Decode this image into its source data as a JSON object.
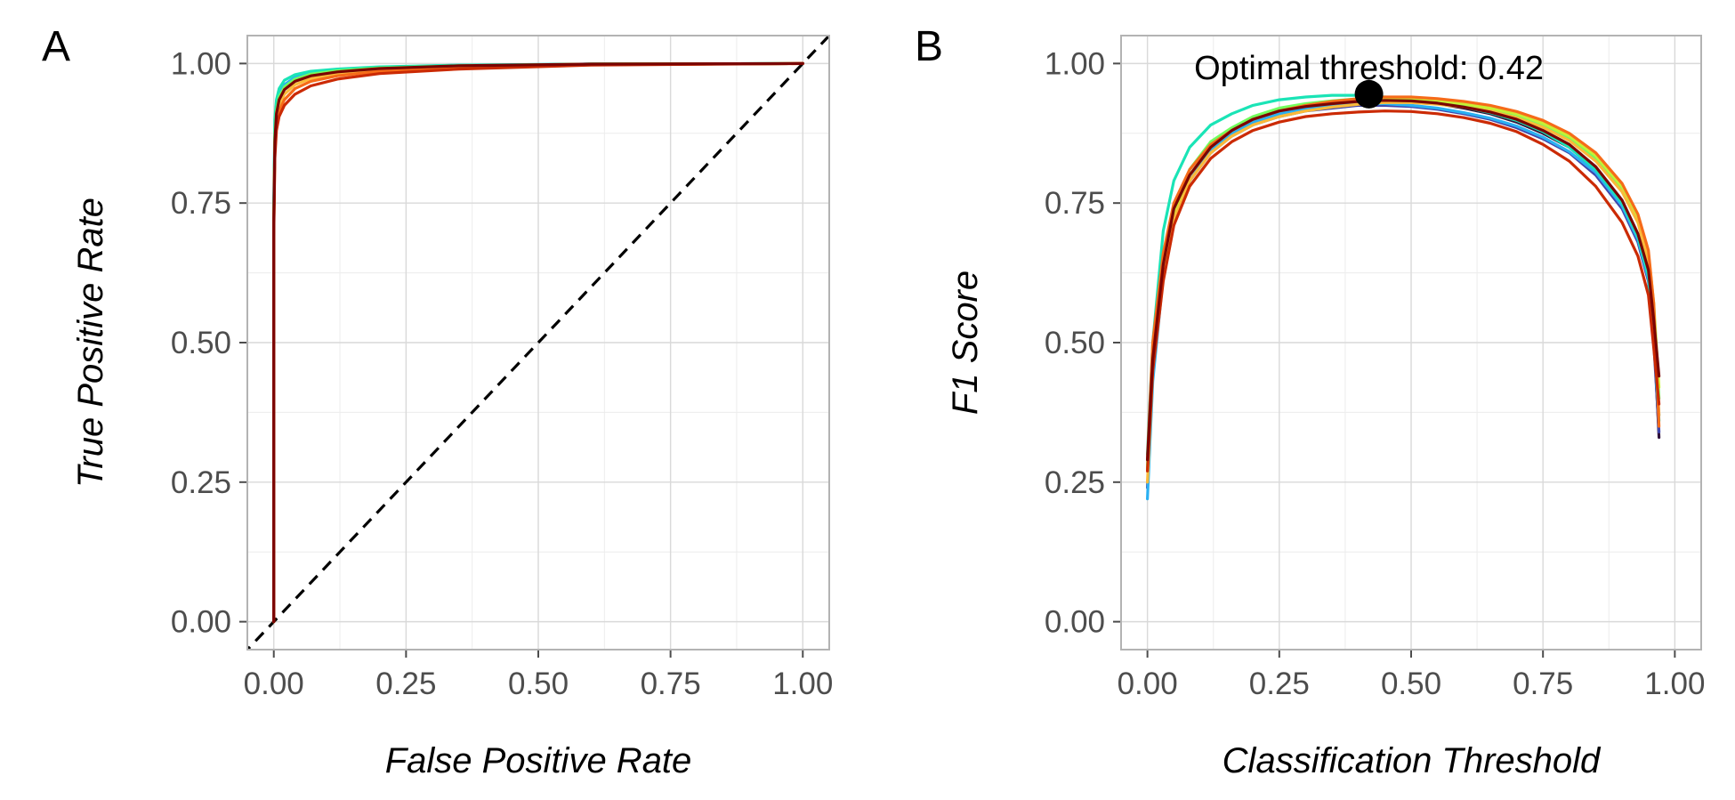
{
  "panels": {
    "a": {
      "letter": "A"
    },
    "b": {
      "letter": "B"
    }
  },
  "chart_data": [
    {
      "type": "line",
      "panel": "A",
      "xlabel": "False Positive Rate",
      "ylabel": "True Positive Rate",
      "xlim": [
        -0.05,
        1.05
      ],
      "ylim": [
        -0.05,
        1.05
      ],
      "xticks": [
        "0.00",
        "0.25",
        "0.50",
        "0.75",
        "1.00"
      ],
      "yticks": [
        "0.00",
        "0.25",
        "0.50",
        "0.75",
        "1.00"
      ],
      "grid": true,
      "reference_line": {
        "x": [
          0,
          1
        ],
        "y": [
          0,
          1
        ],
        "style": "dashed",
        "color": "#000000"
      },
      "series": [
        {
          "color": "#30123b",
          "x": [
            0,
            0,
            0.002,
            0.005,
            0.01,
            0.02,
            0.04,
            0.07,
            0.12,
            0.2,
            0.35,
            0.6,
            1.0
          ],
          "y": [
            0,
            0.72,
            0.86,
            0.91,
            0.935,
            0.953,
            0.968,
            0.978,
            0.985,
            0.991,
            0.996,
            0.999,
            1.0
          ]
        },
        {
          "color": "#4145ab",
          "x": [
            0,
            0,
            0.002,
            0.005,
            0.01,
            0.02,
            0.04,
            0.07,
            0.12,
            0.2,
            0.35,
            0.6,
            1.0
          ],
          "y": [
            0,
            0.72,
            0.87,
            0.915,
            0.94,
            0.957,
            0.971,
            0.98,
            0.987,
            0.992,
            0.996,
            0.999,
            1.0
          ]
        },
        {
          "color": "#2ab0f2",
          "x": [
            0,
            0,
            0.002,
            0.005,
            0.01,
            0.02,
            0.04,
            0.07,
            0.12,
            0.2,
            0.35,
            0.6,
            1.0
          ],
          "y": [
            0,
            0.73,
            0.88,
            0.92,
            0.945,
            0.962,
            0.975,
            0.983,
            0.989,
            0.993,
            0.997,
            0.999,
            1.0
          ]
        },
        {
          "color": "#1ae4b6",
          "x": [
            0,
            0,
            0.002,
            0.005,
            0.01,
            0.02,
            0.04,
            0.07,
            0.12,
            0.2,
            0.35,
            0.6,
            1.0
          ],
          "y": [
            0,
            0.75,
            0.9,
            0.935,
            0.955,
            0.97,
            0.98,
            0.986,
            0.99,
            0.994,
            0.997,
            0.999,
            1.0
          ]
        },
        {
          "color": "#72fe5e",
          "x": [
            0,
            0,
            0.002,
            0.005,
            0.01,
            0.02,
            0.04,
            0.07,
            0.12,
            0.2,
            0.35,
            0.6,
            1.0
          ],
          "y": [
            0,
            0.72,
            0.87,
            0.915,
            0.94,
            0.958,
            0.972,
            0.981,
            0.987,
            0.992,
            0.996,
            0.999,
            1.0
          ]
        },
        {
          "color": "#c8ef34",
          "x": [
            0,
            0,
            0.002,
            0.005,
            0.01,
            0.02,
            0.04,
            0.07,
            0.12,
            0.2,
            0.35,
            0.6,
            1.0
          ],
          "y": [
            0,
            0.71,
            0.86,
            0.91,
            0.935,
            0.953,
            0.968,
            0.978,
            0.985,
            0.991,
            0.995,
            0.999,
            1.0
          ]
        },
        {
          "color": "#faba39",
          "x": [
            0,
            0,
            0.002,
            0.005,
            0.01,
            0.02,
            0.04,
            0.07,
            0.12,
            0.2,
            0.35,
            0.6,
            1.0
          ],
          "y": [
            0,
            0.7,
            0.85,
            0.9,
            0.925,
            0.945,
            0.962,
            0.973,
            0.982,
            0.989,
            0.994,
            0.998,
            1.0
          ]
        },
        {
          "color": "#f66b19",
          "x": [
            0,
            0,
            0.002,
            0.005,
            0.01,
            0.02,
            0.04,
            0.07,
            0.12,
            0.2,
            0.35,
            0.6,
            1.0
          ],
          "y": [
            0,
            0.7,
            0.84,
            0.89,
            0.915,
            0.935,
            0.955,
            0.968,
            0.978,
            0.986,
            0.993,
            0.998,
            1.0
          ]
        },
        {
          "color": "#cb2a04",
          "x": [
            0,
            0,
            0.002,
            0.005,
            0.01,
            0.02,
            0.04,
            0.07,
            0.12,
            0.2,
            0.35,
            0.6,
            1.0
          ],
          "y": [
            0,
            0.69,
            0.83,
            0.88,
            0.905,
            0.925,
            0.945,
            0.96,
            0.972,
            0.982,
            0.99,
            0.997,
            1.0
          ]
        },
        {
          "color": "#7a0403",
          "x": [
            0,
            0,
            0.002,
            0.005,
            0.01,
            0.02,
            0.04,
            0.07,
            0.12,
            0.2,
            0.35,
            0.6,
            1.0
          ],
          "y": [
            0,
            0.72,
            0.86,
            0.91,
            0.935,
            0.953,
            0.968,
            0.978,
            0.985,
            0.991,
            0.996,
            0.999,
            1.0
          ]
        }
      ]
    },
    {
      "type": "line",
      "panel": "B",
      "xlabel": "Classification Threshold",
      "ylabel": "F1 Score",
      "xlim": [
        -0.05,
        1.05
      ],
      "ylim": [
        -0.05,
        1.05
      ],
      "xticks": [
        "0.00",
        "0.25",
        "0.50",
        "0.75",
        "1.00"
      ],
      "yticks": [
        "0.00",
        "0.25",
        "0.50",
        "0.75",
        "1.00"
      ],
      "grid": true,
      "annotation": {
        "text": "Optimal threshold: 0.42",
        "x": 0.42,
        "y": 0.945
      },
      "series": [
        {
          "color": "#30123b",
          "x": [
            0.0,
            0.01,
            0.03,
            0.05,
            0.08,
            0.12,
            0.16,
            0.2,
            0.25,
            0.3,
            0.35,
            0.4,
            0.45,
            0.5,
            0.55,
            0.6,
            0.65,
            0.7,
            0.75,
            0.8,
            0.85,
            0.9,
            0.93,
            0.95,
            0.96,
            0.97
          ],
          "y": [
            0.27,
            0.45,
            0.63,
            0.73,
            0.8,
            0.85,
            0.88,
            0.9,
            0.915,
            0.925,
            0.93,
            0.935,
            0.935,
            0.932,
            0.928,
            0.92,
            0.91,
            0.895,
            0.875,
            0.85,
            0.81,
            0.75,
            0.69,
            0.62,
            0.52,
            0.33
          ]
        },
        {
          "color": "#4145ab",
          "x": [
            0.0,
            0.01,
            0.03,
            0.05,
            0.08,
            0.12,
            0.16,
            0.2,
            0.25,
            0.3,
            0.35,
            0.4,
            0.45,
            0.5,
            0.55,
            0.6,
            0.65,
            0.7,
            0.75,
            0.8,
            0.85,
            0.9,
            0.93,
            0.95,
            0.96,
            0.97
          ],
          "y": [
            0.24,
            0.44,
            0.62,
            0.72,
            0.79,
            0.84,
            0.87,
            0.89,
            0.905,
            0.915,
            0.92,
            0.925,
            0.925,
            0.923,
            0.918,
            0.91,
            0.9,
            0.885,
            0.865,
            0.84,
            0.8,
            0.74,
            0.68,
            0.61,
            0.5,
            0.34
          ]
        },
        {
          "color": "#2ab0f2",
          "x": [
            0.0,
            0.01,
            0.03,
            0.05,
            0.08,
            0.12,
            0.16,
            0.2,
            0.25,
            0.3,
            0.35,
            0.4,
            0.45,
            0.5,
            0.55,
            0.6,
            0.65,
            0.7,
            0.75,
            0.8,
            0.85,
            0.9,
            0.93,
            0.95,
            0.96,
            0.97
          ],
          "y": [
            0.22,
            0.43,
            0.62,
            0.72,
            0.79,
            0.845,
            0.875,
            0.895,
            0.91,
            0.92,
            0.925,
            0.928,
            0.928,
            0.925,
            0.92,
            0.912,
            0.902,
            0.888,
            0.868,
            0.842,
            0.805,
            0.745,
            0.685,
            0.615,
            0.51,
            0.37
          ]
        },
        {
          "color": "#1ae4b6",
          "x": [
            0.0,
            0.01,
            0.03,
            0.05,
            0.08,
            0.12,
            0.16,
            0.2,
            0.25,
            0.3,
            0.35,
            0.4,
            0.45,
            0.5,
            0.55,
            0.6,
            0.65,
            0.7,
            0.75,
            0.8,
            0.85,
            0.9,
            0.93,
            0.95,
            0.96,
            0.97
          ],
          "y": [
            0.3,
            0.5,
            0.7,
            0.79,
            0.85,
            0.89,
            0.91,
            0.925,
            0.935,
            0.94,
            0.943,
            0.943,
            0.94,
            0.936,
            0.93,
            0.922,
            0.912,
            0.898,
            0.878,
            0.85,
            0.81,
            0.75,
            0.69,
            0.62,
            0.52,
            0.36
          ]
        },
        {
          "color": "#72fe5e",
          "x": [
            0.0,
            0.01,
            0.03,
            0.05,
            0.08,
            0.12,
            0.16,
            0.2,
            0.25,
            0.3,
            0.35,
            0.4,
            0.45,
            0.5,
            0.55,
            0.6,
            0.65,
            0.7,
            0.75,
            0.8,
            0.85,
            0.9,
            0.93,
            0.95,
            0.96,
            0.97
          ],
          "y": [
            0.28,
            0.47,
            0.64,
            0.74,
            0.81,
            0.86,
            0.885,
            0.905,
            0.92,
            0.928,
            0.933,
            0.937,
            0.937,
            0.935,
            0.931,
            0.925,
            0.917,
            0.905,
            0.888,
            0.865,
            0.83,
            0.775,
            0.72,
            0.655,
            0.56,
            0.4
          ]
        },
        {
          "color": "#c8ef34",
          "x": [
            0.0,
            0.01,
            0.03,
            0.05,
            0.08,
            0.12,
            0.16,
            0.2,
            0.25,
            0.3,
            0.35,
            0.4,
            0.45,
            0.5,
            0.55,
            0.6,
            0.65,
            0.7,
            0.75,
            0.8,
            0.85,
            0.9,
            0.93,
            0.95,
            0.96,
            0.97
          ],
          "y": [
            0.27,
            0.46,
            0.63,
            0.73,
            0.8,
            0.85,
            0.88,
            0.9,
            0.915,
            0.925,
            0.93,
            0.935,
            0.937,
            0.936,
            0.933,
            0.928,
            0.92,
            0.91,
            0.893,
            0.87,
            0.835,
            0.78,
            0.725,
            0.66,
            0.57,
            0.42
          ]
        },
        {
          "color": "#faba39",
          "x": [
            0.0,
            0.01,
            0.03,
            0.05,
            0.08,
            0.12,
            0.16,
            0.2,
            0.25,
            0.3,
            0.35,
            0.4,
            0.45,
            0.5,
            0.55,
            0.6,
            0.65,
            0.7,
            0.75,
            0.8,
            0.85,
            0.9,
            0.93,
            0.95,
            0.96,
            0.97
          ],
          "y": [
            0.25,
            0.45,
            0.62,
            0.72,
            0.79,
            0.84,
            0.87,
            0.89,
            0.905,
            0.915,
            0.922,
            0.927,
            0.93,
            0.93,
            0.927,
            0.922,
            0.915,
            0.903,
            0.886,
            0.862,
            0.825,
            0.77,
            0.715,
            0.645,
            0.55,
            0.37
          ]
        },
        {
          "color": "#f66b19",
          "x": [
            0.0,
            0.01,
            0.03,
            0.05,
            0.08,
            0.12,
            0.16,
            0.2,
            0.25,
            0.3,
            0.35,
            0.4,
            0.45,
            0.5,
            0.55,
            0.6,
            0.65,
            0.7,
            0.75,
            0.8,
            0.85,
            0.9,
            0.93,
            0.95,
            0.96,
            0.97
          ],
          "y": [
            0.29,
            0.5,
            0.66,
            0.75,
            0.81,
            0.855,
            0.88,
            0.9,
            0.915,
            0.925,
            0.932,
            0.937,
            0.94,
            0.94,
            0.937,
            0.932,
            0.925,
            0.914,
            0.898,
            0.875,
            0.84,
            0.785,
            0.73,
            0.665,
            0.57,
            0.35
          ]
        },
        {
          "color": "#cb2a04",
          "x": [
            0.0,
            0.01,
            0.03,
            0.05,
            0.08,
            0.12,
            0.16,
            0.2,
            0.25,
            0.3,
            0.35,
            0.4,
            0.45,
            0.5,
            0.55,
            0.6,
            0.65,
            0.7,
            0.75,
            0.8,
            0.85,
            0.9,
            0.93,
            0.95,
            0.96,
            0.97
          ],
          "y": [
            0.27,
            0.45,
            0.61,
            0.71,
            0.78,
            0.83,
            0.86,
            0.88,
            0.895,
            0.905,
            0.91,
            0.913,
            0.915,
            0.914,
            0.91,
            0.903,
            0.893,
            0.878,
            0.855,
            0.825,
            0.78,
            0.715,
            0.655,
            0.585,
            0.49,
            0.39
          ]
        },
        {
          "color": "#7a0403",
          "x": [
            0.0,
            0.01,
            0.03,
            0.05,
            0.08,
            0.12,
            0.16,
            0.2,
            0.25,
            0.3,
            0.35,
            0.4,
            0.45,
            0.5,
            0.55,
            0.6,
            0.65,
            0.7,
            0.75,
            0.8,
            0.85,
            0.9,
            0.93,
            0.95,
            0.96,
            0.97
          ],
          "y": [
            0.29,
            0.47,
            0.64,
            0.74,
            0.8,
            0.85,
            0.88,
            0.9,
            0.915,
            0.923,
            0.928,
            0.932,
            0.934,
            0.933,
            0.929,
            0.922,
            0.913,
            0.9,
            0.88,
            0.855,
            0.815,
            0.755,
            0.695,
            0.63,
            0.54,
            0.44
          ]
        }
      ]
    }
  ]
}
